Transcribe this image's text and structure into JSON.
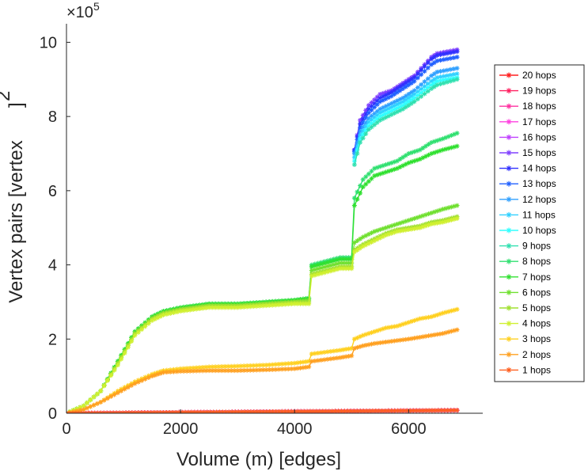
{
  "chart_data": {
    "type": "line",
    "title": "",
    "xlabel": "Volume (m) [edges]",
    "ylabel": "Vertex pairs [vertex",
    "ylabel_superscript": "2",
    "ylabel_suffix": "]",
    "y_multiplier": "×10",
    "y_multiplier_exponent": "5",
    "xlim": [
      0,
      7300
    ],
    "ylim": [
      0,
      10.5
    ],
    "xticks": [
      0,
      2000,
      4000,
      6000
    ],
    "xtick_labels": [
      "0",
      "2000",
      "4000",
      "6000"
    ],
    "yticks": [
      0,
      2,
      4,
      6,
      8,
      10
    ],
    "ytick_labels": [
      "0",
      "2",
      "4",
      "6",
      "8",
      "10"
    ],
    "grid": false,
    "legend_position": "right-outside",
    "marker": "asterisk",
    "series": [
      {
        "name": "20 hops",
        "color": "#ff2020",
        "x": [
          0,
          6850
        ],
        "y": [
          0,
          0.08
        ]
      },
      {
        "name": "19 hops",
        "color": "#ff2060",
        "x": [
          0,
          6850
        ],
        "y": [
          0,
          0.08
        ]
      },
      {
        "name": "18 hops",
        "color": "#ff30a0",
        "x": [
          0,
          6850
        ],
        "y": [
          0,
          0.08
        ]
      },
      {
        "name": "17 hops",
        "color": "#ff40e0",
        "x": [
          0,
          6850
        ],
        "y": [
          0,
          0.08
        ]
      },
      {
        "name": "16 hops",
        "color": "#c040ff",
        "x": [
          0,
          6850
        ],
        "y": [
          0,
          0.08
        ]
      },
      {
        "name": "15 hops",
        "color": "#8040ff",
        "x": [
          5050,
          5150,
          5300,
          5500,
          5700,
          5900,
          6100,
          6400,
          6500,
          6850
        ],
        "y": [
          7.1,
          7.9,
          8.3,
          8.6,
          8.7,
          8.9,
          9.1,
          9.6,
          9.7,
          9.8
        ]
      },
      {
        "name": "14 hops",
        "color": "#3030ff",
        "x": [
          5050,
          5150,
          5300,
          5500,
          5700,
          5900,
          6100,
          6400,
          6500,
          6850
        ],
        "y": [
          7.1,
          7.8,
          8.2,
          8.5,
          8.65,
          8.85,
          9.05,
          9.55,
          9.65,
          9.75
        ]
      },
      {
        "name": "13 hops",
        "color": "#2060ff",
        "x": [
          5050,
          5150,
          5300,
          5500,
          5700,
          5900,
          6100,
          6400,
          6500,
          6850
        ],
        "y": [
          7.05,
          7.7,
          8.1,
          8.4,
          8.55,
          8.75,
          8.95,
          9.4,
          9.5,
          9.6
        ]
      },
      {
        "name": "12 hops",
        "color": "#30a0ff",
        "x": [
          5050,
          5150,
          5300,
          5500,
          5700,
          5900,
          6100,
          6400,
          6500,
          6850
        ],
        "y": [
          7.0,
          7.6,
          7.95,
          8.2,
          8.35,
          8.5,
          8.7,
          9.1,
          9.2,
          9.3
        ]
      },
      {
        "name": "11 hops",
        "color": "#30d0ff",
        "x": [
          5050,
          5150,
          5300,
          5500,
          5700,
          5900,
          6100,
          6400,
          6500,
          6850
        ],
        "y": [
          6.9,
          7.5,
          7.85,
          8.1,
          8.25,
          8.4,
          8.6,
          8.95,
          9.05,
          9.15
        ]
      },
      {
        "name": "10 hops",
        "color": "#30ffff",
        "x": [
          5050,
          5150,
          5300,
          5500,
          5700,
          5900,
          6100,
          6400,
          6500,
          6850
        ],
        "y": [
          6.8,
          7.4,
          7.75,
          8.0,
          8.15,
          8.3,
          8.5,
          8.85,
          8.95,
          9.05
        ]
      },
      {
        "name": "9 hops",
        "color": "#30e0b0",
        "x": [
          5050,
          5150,
          5300,
          5500,
          5700,
          5900,
          6100,
          6400,
          6500,
          6850
        ],
        "y": [
          6.7,
          7.3,
          7.65,
          7.9,
          8.05,
          8.2,
          8.4,
          8.75,
          8.85,
          9.0
        ]
      },
      {
        "name": "8 hops",
        "color": "#30e070",
        "x": [
          0,
          300,
          600,
          900,
          1200,
          1500,
          1700,
          2000,
          2500,
          3000,
          3500,
          4000,
          4250,
          4300,
          4800,
          5000,
          5050,
          5200,
          5400,
          5600,
          5800,
          6000,
          6200,
          6400,
          6600,
          6850
        ],
        "y": [
          0,
          0.2,
          0.6,
          1.4,
          2.2,
          2.6,
          2.75,
          2.85,
          2.95,
          2.95,
          3.0,
          3.05,
          3.1,
          4.0,
          4.2,
          4.2,
          5.8,
          6.3,
          6.6,
          6.7,
          6.8,
          7.0,
          7.1,
          7.3,
          7.4,
          7.55
        ]
      },
      {
        "name": "7 hops",
        "color": "#30e030",
        "x": [
          0,
          300,
          600,
          900,
          1200,
          1500,
          1700,
          2000,
          2500,
          3000,
          3500,
          4000,
          4250,
          4300,
          4800,
          5000,
          5050,
          5200,
          5400,
          5600,
          5800,
          6000,
          6200,
          6400,
          6600,
          6850
        ],
        "y": [
          0,
          0.2,
          0.6,
          1.4,
          2.2,
          2.6,
          2.75,
          2.85,
          2.95,
          2.95,
          3.0,
          3.05,
          3.1,
          3.95,
          4.15,
          4.15,
          5.6,
          6.1,
          6.4,
          6.5,
          6.6,
          6.75,
          6.85,
          7.0,
          7.1,
          7.2
        ]
      },
      {
        "name": "6 hops",
        "color": "#70e030",
        "x": [
          0,
          300,
          600,
          900,
          1200,
          1500,
          1700,
          2000,
          2500,
          3000,
          3500,
          4000,
          4250,
          4300,
          4800,
          5000,
          5050,
          5200,
          5400,
          5600,
          5800,
          6000,
          6200,
          6400,
          6600,
          6850
        ],
        "y": [
          0,
          0.2,
          0.6,
          1.35,
          2.15,
          2.55,
          2.7,
          2.8,
          2.9,
          2.9,
          2.95,
          3.0,
          3.05,
          3.85,
          4.05,
          4.05,
          4.6,
          4.75,
          4.9,
          5.0,
          5.1,
          5.2,
          5.3,
          5.4,
          5.5,
          5.6
        ]
      },
      {
        "name": "5 hops",
        "color": "#a0e030",
        "x": [
          0,
          300,
          600,
          900,
          1200,
          1500,
          1700,
          2000,
          2500,
          3000,
          3500,
          4000,
          4250,
          4300,
          4800,
          5000,
          5050,
          5200,
          5400,
          5600,
          5800,
          6000,
          6200,
          6400,
          6600,
          6850
        ],
        "y": [
          0,
          0.2,
          0.6,
          1.35,
          2.15,
          2.55,
          2.7,
          2.8,
          2.9,
          2.9,
          2.95,
          3.0,
          3.0,
          3.75,
          3.95,
          3.95,
          4.4,
          4.55,
          4.7,
          4.85,
          4.95,
          5.0,
          5.05,
          5.15,
          5.2,
          5.3
        ]
      },
      {
        "name": "4 hops",
        "color": "#d0f030",
        "x": [
          0,
          300,
          600,
          900,
          1200,
          1500,
          1700,
          2000,
          2500,
          3000,
          3500,
          4000,
          4250,
          4300,
          4800,
          5000,
          5050,
          5200,
          5400,
          5600,
          5800,
          6000,
          6200,
          6400,
          6600,
          6850
        ],
        "y": [
          0,
          0.2,
          0.6,
          1.3,
          2.1,
          2.5,
          2.65,
          2.75,
          2.85,
          2.85,
          2.9,
          2.95,
          2.95,
          3.7,
          3.9,
          3.9,
          4.35,
          4.5,
          4.65,
          4.8,
          4.9,
          4.95,
          5.0,
          5.1,
          5.15,
          5.25
        ]
      },
      {
        "name": "3 hops",
        "color": "#ffd020",
        "x": [
          0,
          300,
          600,
          900,
          1200,
          1500,
          1700,
          2000,
          2500,
          3000,
          3500,
          4000,
          4250,
          4300,
          4800,
          5000,
          5050,
          5200,
          5400,
          5600,
          5800,
          6000,
          6200,
          6400,
          6600,
          6850
        ],
        "y": [
          0,
          0.1,
          0.3,
          0.6,
          0.85,
          1.05,
          1.15,
          1.2,
          1.25,
          1.27,
          1.3,
          1.35,
          1.4,
          1.6,
          1.7,
          1.75,
          2.0,
          2.1,
          2.2,
          2.3,
          2.35,
          2.45,
          2.55,
          2.6,
          2.7,
          2.8
        ]
      },
      {
        "name": "2 hops",
        "color": "#ffa020",
        "x": [
          0,
          300,
          600,
          900,
          1200,
          1500,
          1700,
          2000,
          2500,
          3000,
          3500,
          4000,
          4250,
          4300,
          4800,
          5000,
          5050,
          5200,
          5400,
          5600,
          5800,
          6000,
          6200,
          6400,
          6600,
          6850
        ],
        "y": [
          0,
          0.1,
          0.3,
          0.55,
          0.8,
          1.0,
          1.1,
          1.13,
          1.15,
          1.15,
          1.17,
          1.2,
          1.25,
          1.4,
          1.5,
          1.55,
          1.75,
          1.82,
          1.88,
          1.92,
          1.96,
          2.0,
          2.05,
          2.1,
          2.15,
          2.25
        ]
      },
      {
        "name": "1 hops",
        "color": "#ff6020",
        "x": [
          0,
          6850
        ],
        "y": [
          0,
          0.08
        ]
      }
    ]
  }
}
